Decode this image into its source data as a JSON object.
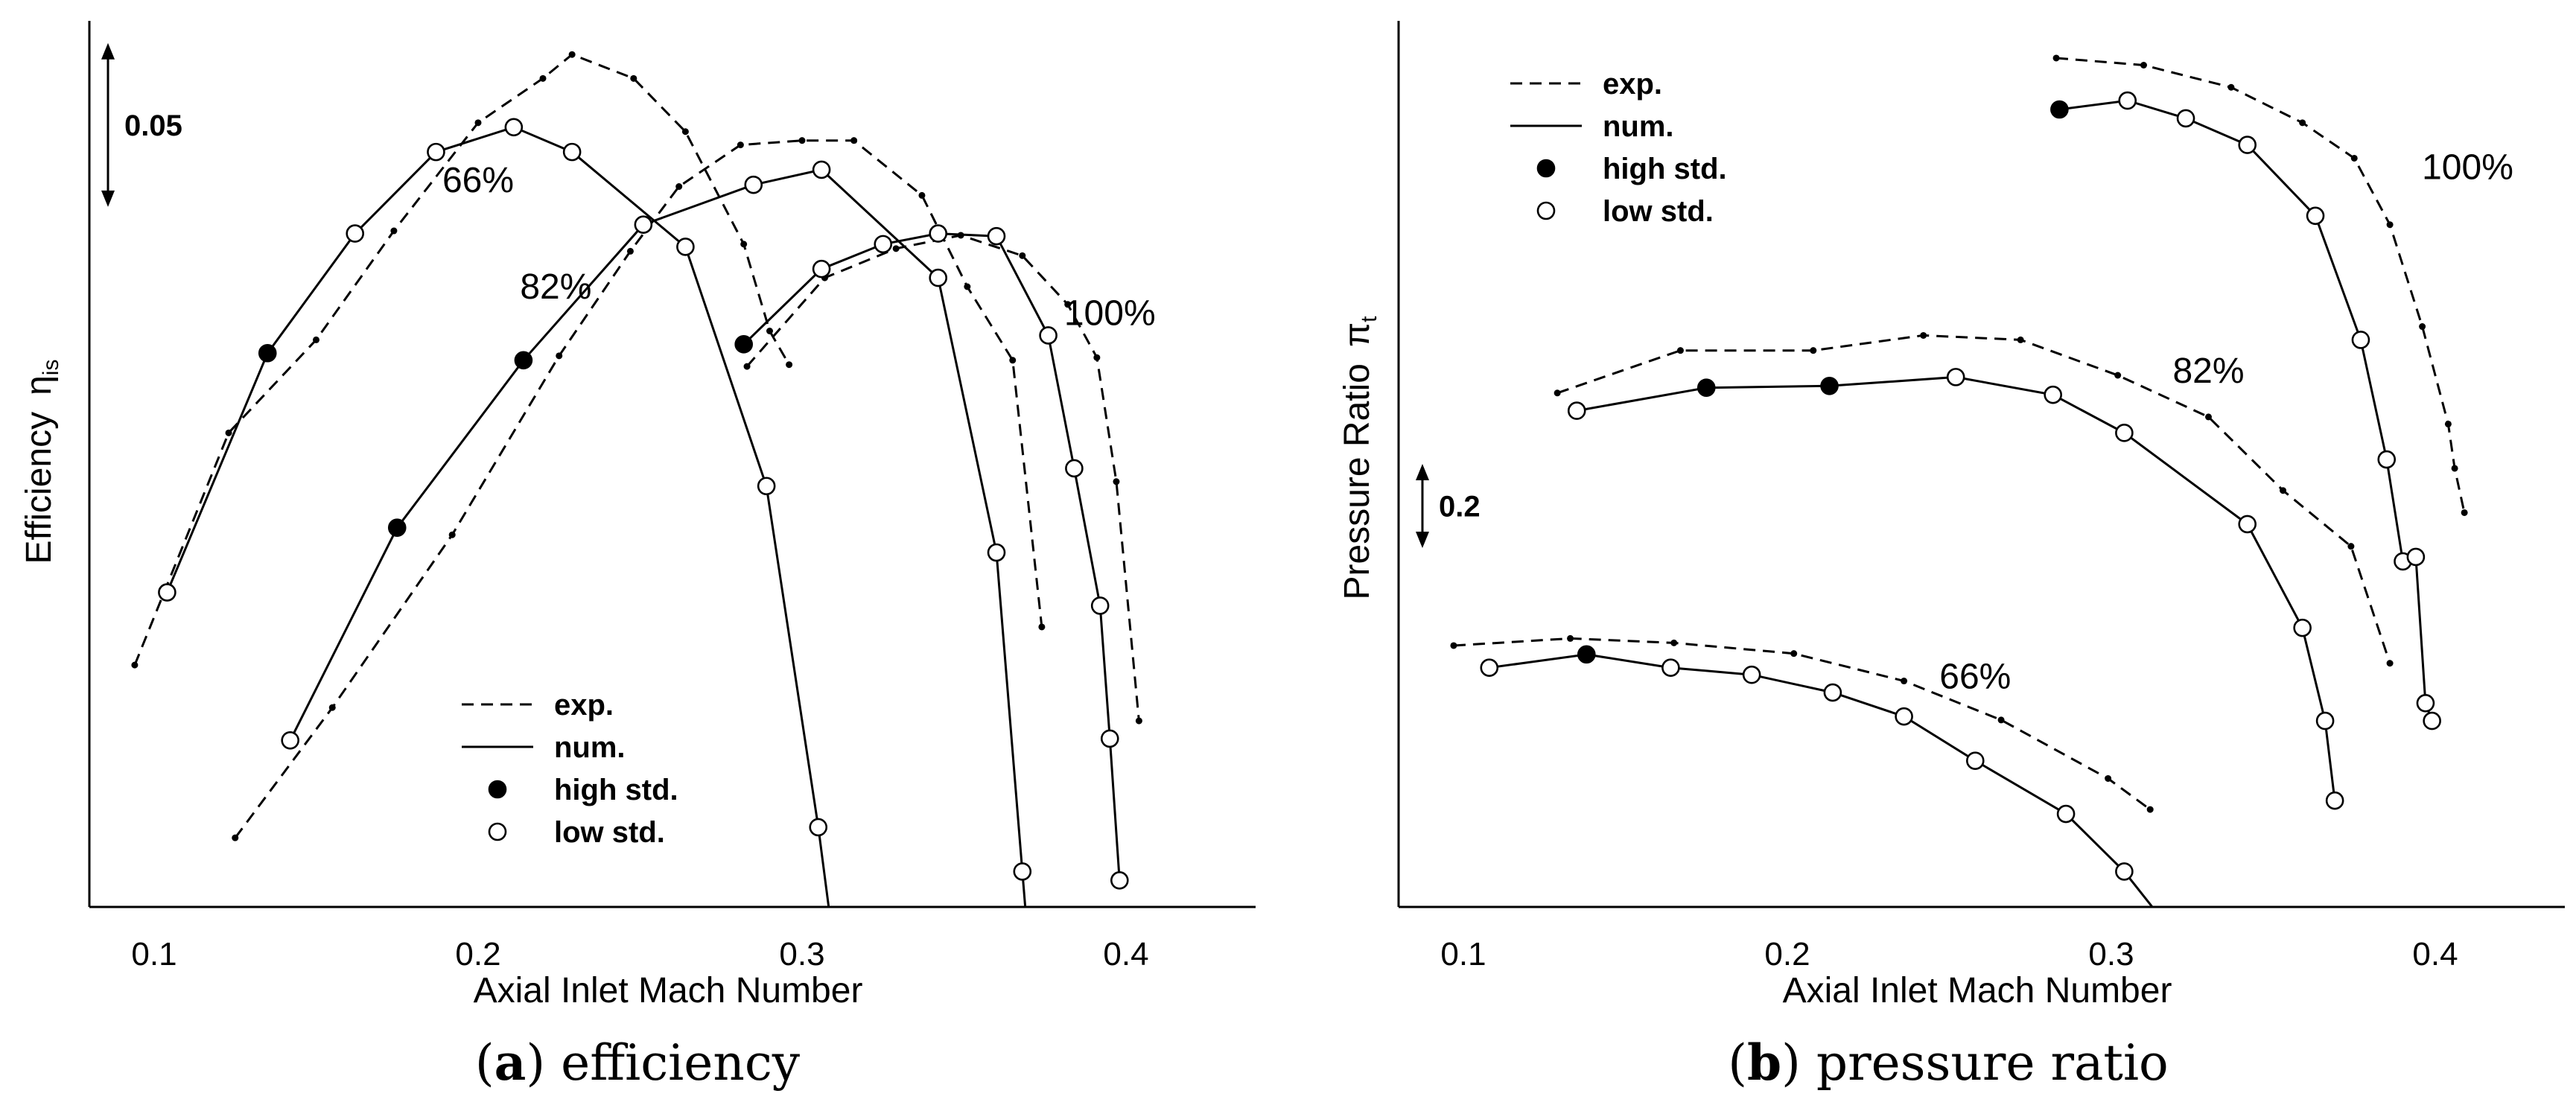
{
  "chart_data": [
    {
      "id": "a",
      "type": "line",
      "title": "",
      "caption_letter": "a",
      "caption_text": "efficiency",
      "xlabel": "Axial Inlet Mach Number",
      "ylabel_main": "Efficiency",
      "ylabel_symbol": "η",
      "ylabel_sub": "is",
      "xlim": [
        0.08,
        0.44
      ],
      "ylim": [
        0.0,
        1.0
      ],
      "xticks": [
        0.1,
        0.2,
        0.3,
        0.4
      ],
      "xtick_labels": [
        "0.1",
        "0.2",
        "0.3",
        "0.4"
      ],
      "y_scale_bar": {
        "label": "0.05",
        "from": 0.79,
        "to": 0.975
      },
      "legend": {
        "position": "bottom-center",
        "entries": [
          {
            "kind": "dashed",
            "label": "exp."
          },
          {
            "kind": "solid",
            "label": "num."
          },
          {
            "kind": "filled",
            "label": "high std."
          },
          {
            "kind": "open",
            "label": "low std."
          }
        ]
      },
      "series": [
        {
          "name": "66%",
          "label": "66%",
          "label_at": [
            0.2,
            0.82
          ],
          "kind": "exp",
          "x": [
            0.094,
            0.123,
            0.15,
            0.174,
            0.2,
            0.22,
            0.229,
            0.248,
            0.264,
            0.282,
            0.29,
            0.296
          ],
          "y": [
            0.273,
            0.535,
            0.64,
            0.763,
            0.885,
            0.935,
            0.962,
            0.935,
            0.875,
            0.748,
            0.65,
            0.612
          ]
        },
        {
          "name": "66%",
          "kind": "num",
          "x": [
            0.104,
            0.135,
            0.162,
            0.187,
            0.211,
            0.229,
            0.264,
            0.289,
            0.305,
            0.31
          ],
          "y": [
            0.355,
            0.625,
            0.76,
            0.852,
            0.88,
            0.852,
            0.745,
            0.475,
            0.09,
            -0.05
          ],
          "high": [
            false,
            true,
            false,
            false,
            false,
            false,
            false,
            false,
            false,
            false
          ],
          "markers": [
            true,
            true,
            true,
            true,
            true,
            true,
            true,
            true,
            true,
            false
          ]
        },
        {
          "name": "82%",
          "label": "82%",
          "label_at": [
            0.224,
            0.7
          ],
          "kind": "exp",
          "x": [
            0.125,
            0.155,
            0.192,
            0.225,
            0.247,
            0.262,
            0.281,
            0.3,
            0.316,
            0.337,
            0.351,
            0.365,
            0.374
          ],
          "y": [
            0.078,
            0.225,
            0.42,
            0.622,
            0.74,
            0.813,
            0.86,
            0.865,
            0.865,
            0.803,
            0.7,
            0.617,
            0.316
          ]
        },
        {
          "name": "82%",
          "kind": "num",
          "x": [
            0.142,
            0.175,
            0.214,
            0.251,
            0.285,
            0.306,
            0.342,
            0.36,
            0.368,
            0.37
          ],
          "y": [
            0.188,
            0.428,
            0.617,
            0.77,
            0.815,
            0.832,
            0.71,
            0.4,
            0.04,
            -0.05
          ],
          "high": [
            false,
            true,
            true,
            false,
            false,
            false,
            false,
            false,
            false,
            false
          ],
          "markers": [
            true,
            true,
            true,
            true,
            true,
            true,
            true,
            true,
            true,
            false
          ]
        },
        {
          "name": "100%",
          "label": "100%",
          "label_at": [
            0.395,
            0.67
          ],
          "kind": "exp",
          "x": [
            0.283,
            0.307,
            0.329,
            0.349,
            0.368,
            0.382,
            0.391,
            0.397,
            0.404
          ],
          "y": [
            0.61,
            0.71,
            0.743,
            0.758,
            0.735,
            0.68,
            0.62,
            0.48,
            0.21
          ]
        },
        {
          "name": "100%",
          "kind": "num",
          "x": [
            0.282,
            0.306,
            0.325,
            0.342,
            0.36,
            0.376,
            0.384,
            0.392,
            0.395,
            0.398
          ],
          "y": [
            0.635,
            0.72,
            0.748,
            0.76,
            0.757,
            0.645,
            0.495,
            0.34,
            0.19,
            0.03
          ],
          "high": [
            true,
            false,
            false,
            false,
            false,
            false,
            false,
            false,
            false,
            false
          ],
          "markers": [
            true,
            true,
            true,
            true,
            true,
            true,
            true,
            true,
            true,
            true
          ]
        }
      ]
    },
    {
      "id": "b",
      "type": "line",
      "title": "",
      "caption_letter": "b",
      "caption_text": "pressure ratio",
      "xlabel": "Axial Inlet Mach Number",
      "ylabel_main": "Pressure Ratio",
      "ylabel_symbol": "π",
      "ylabel_sub": "t",
      "xlim": [
        0.08,
        0.44
      ],
      "ylim": [
        0.0,
        1.0
      ],
      "xticks": [
        0.1,
        0.2,
        0.3,
        0.4
      ],
      "xtick_labels": [
        "0.1",
        "0.2",
        "0.3",
        "0.4"
      ],
      "y_scale_bar": {
        "label": "0.2",
        "from": 0.405,
        "to": 0.5
      },
      "legend": {
        "position": "top-left",
        "entries": [
          {
            "kind": "dashed",
            "label": "exp."
          },
          {
            "kind": "solid",
            "label": "num."
          },
          {
            "kind": "filled",
            "label": "high std."
          },
          {
            "kind": "open",
            "label": "low std."
          }
        ]
      },
      "series": [
        {
          "name": "66%",
          "label": "66%",
          "label_at": [
            0.258,
            0.26
          ],
          "kind": "exp",
          "x": [
            0.097,
            0.133,
            0.165,
            0.202,
            0.236,
            0.266,
            0.299,
            0.312
          ],
          "y": [
            0.295,
            0.303,
            0.298,
            0.286,
            0.255,
            0.211,
            0.145,
            0.11
          ]
        },
        {
          "name": "66%",
          "kind": "num",
          "x": [
            0.108,
            0.138,
            0.164,
            0.189,
            0.214,
            0.236,
            0.258,
            0.286,
            0.304,
            0.317
          ],
          "y": [
            0.27,
            0.285,
            0.27,
            0.262,
            0.242,
            0.215,
            0.165,
            0.105,
            0.04,
            -0.02
          ],
          "high": [
            false,
            true,
            false,
            false,
            false,
            false,
            false,
            false,
            false,
            false
          ],
          "markers": [
            true,
            true,
            true,
            true,
            true,
            true,
            true,
            true,
            true,
            false
          ]
        },
        {
          "name": "82%",
          "label": "82%",
          "label_at": [
            0.33,
            0.605
          ],
          "kind": "exp",
          "x": [
            0.129,
            0.167,
            0.208,
            0.242,
            0.272,
            0.302,
            0.33,
            0.353,
            0.374,
            0.386
          ],
          "y": [
            0.58,
            0.628,
            0.628,
            0.645,
            0.64,
            0.6,
            0.553,
            0.47,
            0.407,
            0.275
          ]
        },
        {
          "name": "82%",
          "kind": "num",
          "x": [
            0.135,
            0.175,
            0.213,
            0.252,
            0.282,
            0.304,
            0.342,
            0.359,
            0.366,
            0.369
          ],
          "y": [
            0.56,
            0.586,
            0.588,
            0.598,
            0.578,
            0.535,
            0.432,
            0.315,
            0.21,
            0.12
          ],
          "high": [
            false,
            true,
            true,
            false,
            false,
            false,
            false,
            false,
            false,
            false
          ],
          "markers": [
            true,
            true,
            true,
            true,
            true,
            true,
            true,
            true,
            true,
            true
          ]
        },
        {
          "name": "100%",
          "label": "100%",
          "label_at": [
            0.41,
            0.835
          ],
          "kind": "exp",
          "x": [
            0.283,
            0.31,
            0.337,
            0.359,
            0.375,
            0.386,
            0.396,
            0.404,
            0.406,
            0.409
          ],
          "y": [
            0.958,
            0.95,
            0.925,
            0.885,
            0.845,
            0.77,
            0.655,
            0.545,
            0.495,
            0.445
          ]
        },
        {
          "name": "100%",
          "kind": "num",
          "x": [
            0.284,
            0.305,
            0.323,
            0.342,
            0.363,
            0.377,
            0.385,
            0.39,
            0.394,
            0.397,
            0.399
          ],
          "y": [
            0.9,
            0.91,
            0.89,
            0.86,
            0.78,
            0.64,
            0.505,
            0.39,
            0.395,
            0.23,
            0.21
          ],
          "high": [
            true,
            false,
            false,
            false,
            false,
            false,
            false,
            false,
            false,
            false,
            false
          ],
          "markers": [
            true,
            true,
            true,
            true,
            true,
            true,
            true,
            true,
            true,
            true,
            true
          ]
        }
      ]
    }
  ]
}
